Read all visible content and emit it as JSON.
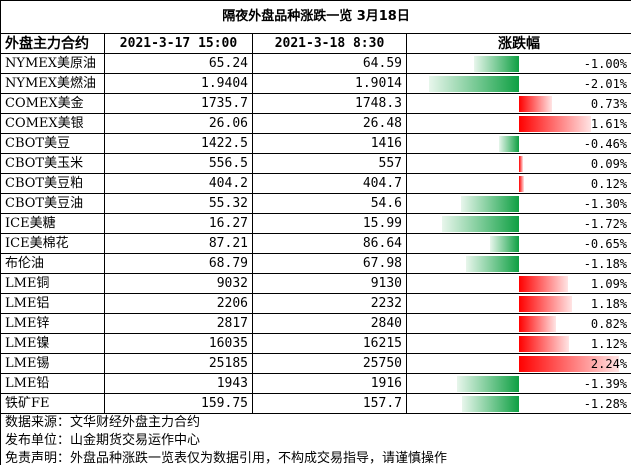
{
  "title": "隔夜外盘品种涨跌一览 3月18日",
  "headers": {
    "name": "外盘主力合约",
    "prev": "2021-3-17 15:00",
    "cur": "2021-3-18 8:30",
    "chg": "涨跌幅"
  },
  "rows": [
    {
      "name": "NYMEX美原油",
      "prev": "65.24",
      "cur": "64.59",
      "chg": "-1.00%",
      "chg_value": -1.0
    },
    {
      "name": "NYMEX美燃油",
      "prev": "1.9404",
      "cur": "1.9014",
      "chg": "-2.01%",
      "chg_value": -2.01
    },
    {
      "name": "COMEX美金",
      "prev": "1735.7",
      "cur": "1748.3",
      "chg": "0.73%",
      "chg_value": 0.73
    },
    {
      "name": "COMEX美银",
      "prev": "26.06",
      "cur": "26.48",
      "chg": "1.61%",
      "chg_value": 1.61
    },
    {
      "name": "CBOT美豆",
      "prev": "1422.5",
      "cur": "1416",
      "chg": "-0.46%",
      "chg_value": -0.46
    },
    {
      "name": "CBOT美玉米",
      "prev": "556.5",
      "cur": "557",
      "chg": "0.09%",
      "chg_value": 0.09
    },
    {
      "name": "CBOT美豆粕",
      "prev": "404.2",
      "cur": "404.7",
      "chg": "0.12%",
      "chg_value": 0.12
    },
    {
      "name": "CBOT美豆油",
      "prev": "55.32",
      "cur": "54.6",
      "chg": "-1.30%",
      "chg_value": -1.3
    },
    {
      "name": "ICE美糖",
      "prev": "16.27",
      "cur": "15.99",
      "chg": "-1.72%",
      "chg_value": -1.72
    },
    {
      "name": "ICE美棉花",
      "prev": "87.21",
      "cur": "86.64",
      "chg": "-0.65%",
      "chg_value": -0.65
    },
    {
      "name": "布伦油",
      "prev": "68.79",
      "cur": "67.98",
      "chg": "-1.18%",
      "chg_value": -1.18
    },
    {
      "name": "LME铜",
      "prev": "9032",
      "cur": "9130",
      "chg": "1.09%",
      "chg_value": 1.09
    },
    {
      "name": "LME铝",
      "prev": "2206",
      "cur": "2232",
      "chg": "1.18%",
      "chg_value": 1.18
    },
    {
      "name": "LME锌",
      "prev": "2817",
      "cur": "2840",
      "chg": "0.82%",
      "chg_value": 0.82
    },
    {
      "name": "LME镍",
      "prev": "16035",
      "cur": "16215",
      "chg": "1.12%",
      "chg_value": 1.12
    },
    {
      "name": "LME锡",
      "prev": "25185",
      "cur": "25750",
      "chg": "2.24%",
      "chg_value": 2.24
    },
    {
      "name": "LME铅",
      "prev": "1943",
      "cur": "1916",
      "chg": "-1.39%",
      "chg_value": -1.39
    },
    {
      "name": "铁矿FE",
      "prev": "159.75",
      "cur": "157.7",
      "chg": "-1.28%",
      "chg_value": -1.28
    }
  ],
  "footer": {
    "source": "数据来源：文华财经外盘主力合约",
    "publisher": "发布单位：山金期货交易运作中心",
    "disclaimer": "免责声明：外盘品种涨跌一览表仅为数据引用，不构成交易指导，请谨慎操作"
  },
  "colors": {
    "negative": "#0fa043",
    "positive": "#ff0000"
  }
}
